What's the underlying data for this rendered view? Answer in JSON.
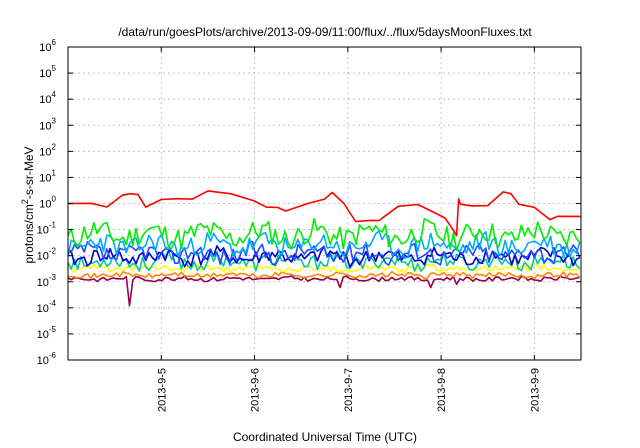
{
  "chart_data": {
    "type": "line",
    "title": "/data/run/goesPlots/archive/2013-09-09/11:00/flux/../flux/5daysMoonFluxes.txt",
    "xlabel": "Coordinated Universal Time (UTC)",
    "ylabel_parts": [
      "protons/cm",
      "2",
      "-s-sr-MeV"
    ],
    "y_scale": "log",
    "ylim": [
      1e-06,
      1000000.0
    ],
    "xlim": [
      "2013-09-04 00:00",
      "2013-09-09 12:00"
    ],
    "grid": true,
    "x_ticks": [
      {
        "date": "2013-09-05",
        "label": "2013-9-5"
      },
      {
        "date": "2013-09-06",
        "label": "2013-9-6"
      },
      {
        "date": "2013-09-07",
        "label": "2013-9-7"
      },
      {
        "date": "2013-09-08",
        "label": "2013-9-8"
      },
      {
        "date": "2013-09-09",
        "label": "2013-9-9"
      }
    ],
    "y_ticks": [
      {
        "value": 1e-06,
        "mantissa": "10",
        "exp": "-6"
      },
      {
        "value": 1e-05,
        "mantissa": "10",
        "exp": "-5"
      },
      {
        "value": 0.0001,
        "mantissa": "10",
        "exp": "-4"
      },
      {
        "value": 0.001,
        "mantissa": "10",
        "exp": "-3"
      },
      {
        "value": 0.01,
        "mantissa": "10",
        "exp": "-2"
      },
      {
        "value": 0.1,
        "mantissa": "10",
        "exp": "-1"
      },
      {
        "value": 1,
        "mantissa": "10",
        "exp": "0"
      },
      {
        "value": 10,
        "mantissa": "10",
        "exp": "1"
      },
      {
        "value": 100,
        "mantissa": "10",
        "exp": "2"
      },
      {
        "value": 1000,
        "mantissa": "10",
        "exp": "3"
      },
      {
        "value": 10000,
        "mantissa": "10",
        "exp": "4"
      },
      {
        "value": 100000,
        "mantissa": "10",
        "exp": "5"
      },
      {
        "value": 1000000,
        "mantissa": "10",
        "exp": "6"
      }
    ],
    "series": [
      {
        "color": "#ff0000",
        "noise": 0.05,
        "x": [
          "2013-09-04 00:00",
          "2013-09-04 06:00",
          "2013-09-04 10:00",
          "2013-09-04 14:00",
          "2013-09-04 16:00",
          "2013-09-04 18:00",
          "2013-09-04 20:00",
          "2013-09-05 00:00",
          "2013-09-05 04:00",
          "2013-09-05 08:00",
          "2013-09-05 12:00",
          "2013-09-05 18:00",
          "2013-09-06 00:00",
          "2013-09-06 03:00",
          "2013-09-06 06:00",
          "2013-09-06 08:00",
          "2013-09-06 14:00",
          "2013-09-06 18:00",
          "2013-09-06 20:00",
          "2013-09-06 23:00",
          "2013-09-07 02:00",
          "2013-09-07 06:00",
          "2013-09-07 08:00",
          "2013-09-07 13:00",
          "2013-09-07 18:00",
          "2013-09-07 23:00",
          "2013-09-08 01:00",
          "2013-09-08 03:00",
          "2013-09-08 04:00",
          "2013-09-08 04:30",
          "2013-09-08 05:00",
          "2013-09-08 08:00",
          "2013-09-08 12:00",
          "2013-09-08 16:00",
          "2013-09-08 18:00",
          "2013-09-08 20:00",
          "2013-09-09 00:00",
          "2013-09-09 04:00",
          "2013-09-09 06:00",
          "2013-09-09 12:00"
        ],
        "y": [
          1.0,
          1.0,
          0.8,
          2.2,
          2.4,
          2.2,
          0.8,
          1.3,
          1.5,
          1.5,
          3.2,
          2.2,
          1.2,
          0.8,
          0.7,
          0.55,
          1.0,
          1.6,
          2.6,
          1.0,
          0.22,
          0.25,
          0.2,
          0.7,
          1.0,
          0.4,
          0.25,
          0.11,
          0.06,
          1.5,
          0.9,
          0.85,
          0.9,
          2.5,
          2.4,
          1.0,
          0.7,
          0.25,
          0.35,
          0.3
        ]
      },
      {
        "color": "#00ee00",
        "base": 0.065,
        "amp": 0.45,
        "seed": 11,
        "x": [],
        "y": []
      },
      {
        "color": "#00aaff",
        "base": 0.025,
        "amp": 0.4,
        "seed": 23,
        "x": [],
        "y": []
      },
      {
        "color": "#1e4cff",
        "base": 0.012,
        "amp": 0.35,
        "seed": 37,
        "x": [],
        "y": []
      },
      {
        "color": "#0000cc",
        "base": 0.009,
        "amp": 0.3,
        "seed": 41,
        "x": [],
        "y": []
      },
      {
        "color": "#00c8a0",
        "base": 0.006,
        "amp": 0.3,
        "seed": 53,
        "x": [],
        "y": []
      },
      {
        "color": "#ffff00",
        "base": 0.0032,
        "amp": 0.12,
        "seed": 61,
        "x": [],
        "y": []
      },
      {
        "color": "#ff8800",
        "base": 0.0018,
        "amp": 0.1,
        "seed": 71,
        "x": [],
        "y": []
      },
      {
        "color": "#99004d",
        "base": 0.0013,
        "amp": 0.08,
        "seed": 83,
        "dips": [
          {
            "x": "2013-09-04 16:00",
            "y": 0.00012
          },
          {
            "x": "2013-09-06 22:00",
            "y": 0.0006
          },
          {
            "x": "2013-09-07 21:00",
            "y": 0.0006
          },
          {
            "x": "2013-09-08 04:00",
            "y": 0.0008
          }
        ],
        "x": [],
        "y": []
      }
    ]
  }
}
